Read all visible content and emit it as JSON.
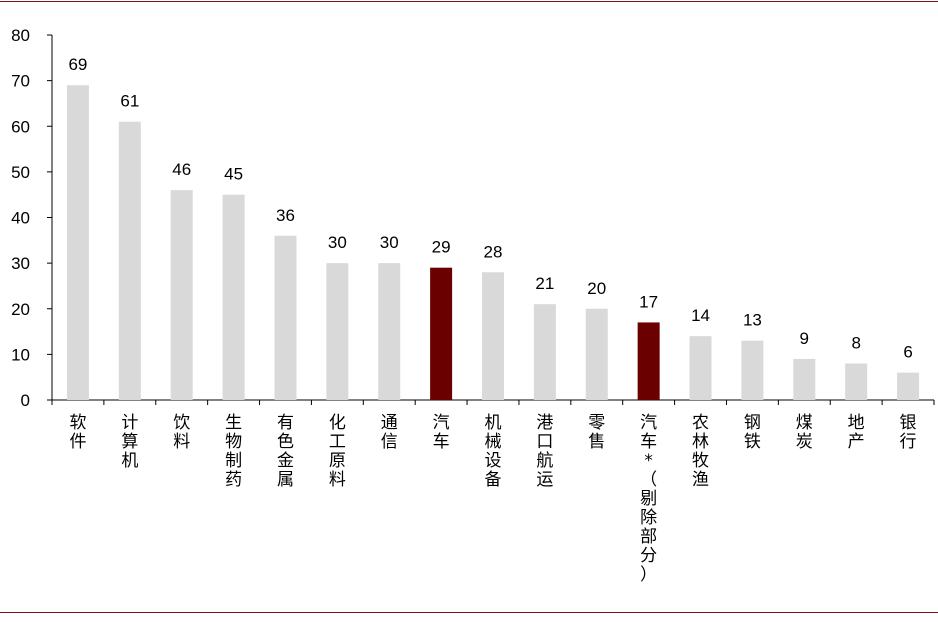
{
  "chart_data": {
    "type": "bar",
    "categories": [
      "软件",
      "计算机",
      "饮料",
      "生物制药",
      "有色金属",
      "化工原料",
      "通信",
      "汽车",
      "机械设备",
      "港口航运",
      "零售",
      "汽车*（剔除部分）",
      "农林牧渔",
      "钢铁",
      "煤炭",
      "地产",
      "银行"
    ],
    "values": [
      69,
      61,
      46,
      45,
      36,
      30,
      30,
      29,
      28,
      21,
      20,
      17,
      14,
      13,
      9,
      8,
      6
    ],
    "ylim": [
      0,
      80
    ],
    "yticks": [
      0,
      10,
      20,
      30,
      40,
      50,
      60,
      70,
      80
    ],
    "title": "",
    "xlabel": "",
    "ylabel": "",
    "colors": {
      "default": "#d9d9d9",
      "highlight": "#6b0000",
      "rule": "#7a1518"
    },
    "highlight_categories": [
      "汽车",
      "汽车*（剔除部分）"
    ],
    "grid": false,
    "legend": "none"
  }
}
